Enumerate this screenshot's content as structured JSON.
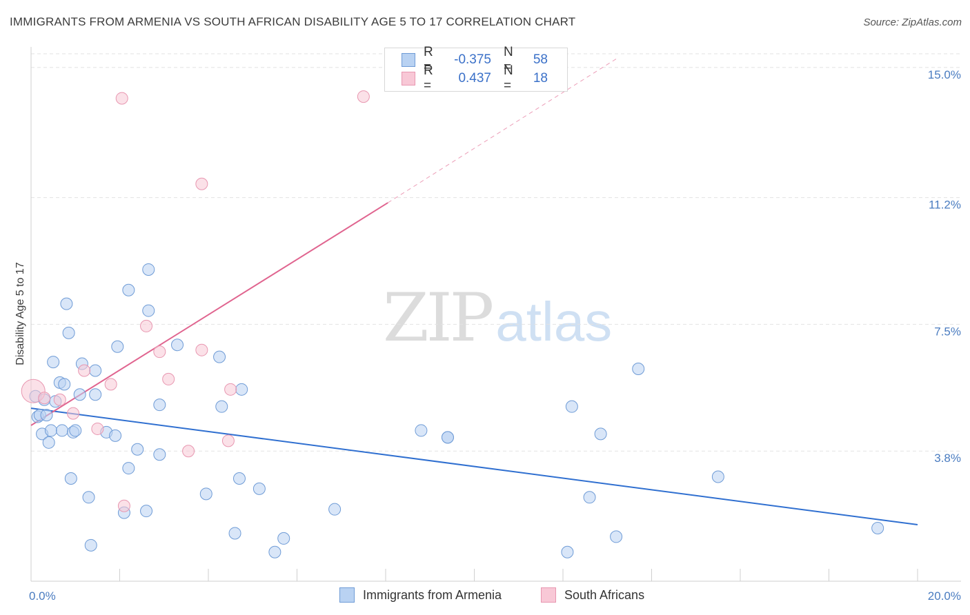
{
  "title": "IMMIGRANTS FROM ARMENIA VS SOUTH AFRICAN DISABILITY AGE 5 TO 17 CORRELATION CHART",
  "source": "Source: ZipAtlas.com",
  "watermark": {
    "zip": "ZIP",
    "atlas": "atlas"
  },
  "legend": {
    "rows": [
      {
        "r_label": "R =",
        "r_value": "-0.375",
        "n_label": "N =",
        "n_value": "58"
      },
      {
        "r_label": "R =",
        "r_value": "0.437",
        "n_label": "N =",
        "n_value": "18"
      }
    ]
  },
  "bottom_legend": [
    "Immigrants from Armenia",
    "South Africans"
  ],
  "colors": {
    "blue_fill": "#b9d2f2",
    "blue_stroke": "#6e9bd6",
    "blue_line": "#2f6fd0",
    "pink_fill": "#f8c8d6",
    "pink_stroke": "#e896b0",
    "pink_line": "#e0648f",
    "tick_color": "#4a7cc0"
  },
  "chart_data": {
    "type": "scatter",
    "title": "IMMIGRANTS FROM ARMENIA VS SOUTH AFRICAN DISABILITY AGE 5 TO 17 CORRELATION CHART",
    "xlabel": "",
    "ylabel": "Disability Age 5 to 17",
    "xlim": [
      0,
      20
    ],
    "ylim": [
      0,
      15.4
    ],
    "x_tick_labels": [
      {
        "value": 0,
        "label": "0.0%"
      },
      {
        "value": 20,
        "label": "20.0%"
      }
    ],
    "y_tick_labels": [
      {
        "value": 3.8,
        "label": "3.8%"
      },
      {
        "value": 7.5,
        "label": "7.5%"
      },
      {
        "value": 11.2,
        "label": "11.2%"
      },
      {
        "value": 15.0,
        "label": "15.0%"
      }
    ],
    "grid": "horizontal dashed",
    "legend_position": "top-center",
    "series": [
      {
        "name": "Immigrants from Armenia",
        "color": "#b9d2f2",
        "points": [
          [
            0.1,
            5.4
          ],
          [
            0.15,
            4.8
          ],
          [
            0.2,
            4.85
          ],
          [
            0.25,
            4.3
          ],
          [
            0.3,
            5.3
          ],
          [
            0.35,
            4.85
          ],
          [
            0.4,
            4.05
          ],
          [
            0.45,
            4.4
          ],
          [
            0.5,
            6.4
          ],
          [
            0.55,
            5.25
          ],
          [
            0.65,
            5.8
          ],
          [
            0.7,
            4.4
          ],
          [
            0.75,
            5.75
          ],
          [
            0.8,
            8.1
          ],
          [
            0.85,
            7.25
          ],
          [
            0.9,
            3.0
          ],
          [
            0.95,
            4.35
          ],
          [
            1.0,
            4.4
          ],
          [
            1.1,
            5.45
          ],
          [
            1.15,
            6.35
          ],
          [
            1.3,
            2.45
          ],
          [
            1.35,
            1.05
          ],
          [
            1.45,
            6.15
          ],
          [
            1.45,
            5.45
          ],
          [
            1.7,
            4.35
          ],
          [
            1.9,
            4.25
          ],
          [
            1.95,
            6.85
          ],
          [
            2.1,
            2.0
          ],
          [
            2.2,
            3.3
          ],
          [
            2.2,
            8.5
          ],
          [
            2.4,
            3.85
          ],
          [
            2.6,
            2.05
          ],
          [
            2.65,
            7.9
          ],
          [
            2.65,
            9.1
          ],
          [
            2.9,
            5.15
          ],
          [
            2.9,
            3.7
          ],
          [
            3.3,
            6.9
          ],
          [
            3.95,
            2.55
          ],
          [
            4.25,
            6.55
          ],
          [
            4.3,
            5.1
          ],
          [
            4.6,
            1.4
          ],
          [
            4.7,
            3.0
          ],
          [
            4.75,
            5.6
          ],
          [
            5.15,
            2.7
          ],
          [
            5.5,
            0.85
          ],
          [
            5.7,
            1.25
          ],
          [
            6.85,
            2.1
          ],
          [
            8.8,
            4.4
          ],
          [
            9.4,
            4.2
          ],
          [
            9.4,
            4.2
          ],
          [
            12.1,
            0.85
          ],
          [
            12.2,
            5.1
          ],
          [
            12.6,
            2.45
          ],
          [
            12.85,
            4.3
          ],
          [
            13.2,
            1.3
          ],
          [
            13.7,
            6.2
          ],
          [
            15.5,
            3.05
          ],
          [
            19.1,
            1.55
          ]
        ],
        "trend": {
          "x1": 0,
          "y1": 5.05,
          "x2": 20,
          "y2": 1.65
        }
      },
      {
        "name": "South Africans",
        "color": "#f8c8d6",
        "points": [
          [
            0.05,
            5.55
          ],
          [
            0.3,
            5.35
          ],
          [
            0.65,
            5.3
          ],
          [
            0.95,
            4.9
          ],
          [
            1.2,
            6.15
          ],
          [
            1.5,
            4.45
          ],
          [
            1.8,
            5.75
          ],
          [
            2.1,
            2.2
          ],
          [
            2.05,
            14.1
          ],
          [
            2.6,
            7.45
          ],
          [
            2.9,
            6.7
          ],
          [
            3.1,
            5.9
          ],
          [
            3.55,
            3.8
          ],
          [
            3.85,
            6.75
          ],
          [
            3.85,
            11.6
          ],
          [
            4.5,
            5.6
          ],
          [
            4.45,
            4.1
          ],
          [
            7.5,
            14.15
          ]
        ],
        "trend": {
          "x1": 0,
          "y1": 4.55,
          "x2": 8.05,
          "y2": 11.05
        },
        "trend_extension": {
          "x1": 8.05,
          "y1": 11.05,
          "x2": 13.2,
          "y2": 15.25
        }
      }
    ]
  }
}
